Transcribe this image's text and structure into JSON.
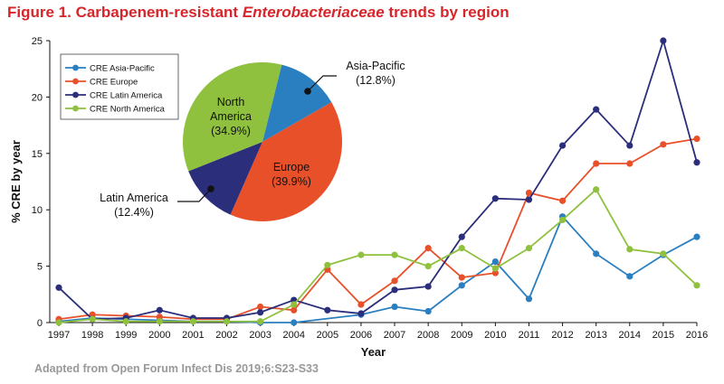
{
  "figure": {
    "title_prefix": "Figure 1. Carbapenem-resistant ",
    "title_italic": "Enterobacteriaceae",
    "title_suffix": " trends by region",
    "footer": "Adapted from Open Forum Infect Dis 2019;6:S23-S33"
  },
  "chart_data": [
    {
      "type": "line",
      "xlabel": "Year",
      "ylabel": "% CRE by year",
      "x": [
        "1997",
        "1998",
        "1999",
        "2000",
        "2001",
        "2002",
        "2003",
        "2004",
        "2005",
        "2006",
        "2007",
        "2008",
        "2009",
        "2010",
        "2011",
        "2012",
        "2013",
        "2014",
        "2015",
        "2016"
      ],
      "ylim": [
        0,
        25
      ],
      "yticks": [
        0,
        5,
        10,
        15,
        20,
        25
      ],
      "grid": false,
      "legend": "top-left",
      "series": [
        {
          "name": "CRE Asia-Pacific",
          "color": "#2a7fc1",
          "x": [
            "1997",
            "1998",
            "1999",
            "2000",
            "2001",
            "2002",
            "2003",
            "2004",
            "2006",
            "2007",
            "2008",
            "2009",
            "2010",
            "2011",
            "2012",
            "2013",
            "2014",
            "2015",
            "2016"
          ],
          "values": [
            0.1,
            0.4,
            0.3,
            0.2,
            0.1,
            0.1,
            0.0,
            0.0,
            0.7,
            1.4,
            1.0,
            3.3,
            5.4,
            2.1,
            9.4,
            6.1,
            4.1,
            6.0,
            7.6
          ]
        },
        {
          "name": "CRE Europe",
          "color": "#e8502a",
          "x": [
            "1997",
            "1998",
            "1999",
            "2000",
            "2001",
            "2002",
            "2003",
            "2004",
            "2005",
            "2006",
            "2007",
            "2008",
            "2009",
            "2010",
            "2011",
            "2012",
            "2013",
            "2014",
            "2015",
            "2016"
          ],
          "values": [
            0.3,
            0.7,
            0.6,
            0.5,
            0.3,
            0.3,
            1.4,
            1.1,
            4.7,
            1.6,
            3.7,
            6.6,
            4.0,
            4.4,
            11.5,
            10.8,
            14.1,
            14.1,
            15.8,
            16.3
          ]
        },
        {
          "name": "CRE Latin America",
          "color": "#2b2e7a",
          "x": [
            "1997",
            "1998",
            "1999",
            "2000",
            "2001",
            "2002",
            "2003",
            "2004",
            "2005",
            "2006",
            "2007",
            "2008",
            "2009",
            "2010",
            "2011",
            "2012",
            "2013",
            "2014",
            "2015",
            "2016"
          ],
          "values": [
            3.1,
            0.3,
            0.4,
            1.1,
            0.4,
            0.4,
            0.9,
            2.0,
            1.1,
            0.8,
            2.9,
            3.2,
            7.6,
            11.0,
            10.9,
            15.7,
            18.9,
            15.7,
            25.0,
            14.2
          ]
        },
        {
          "name": "CRE North America",
          "color": "#8fc13e",
          "x": [
            "1997",
            "1998",
            "1999",
            "2000",
            "2001",
            "2002",
            "2003",
            "2004",
            "2005",
            "2006",
            "2007",
            "2008",
            "2009",
            "2010",
            "2011",
            "2012",
            "2013",
            "2014",
            "2015",
            "2016"
          ],
          "values": [
            0.0,
            0.3,
            0.1,
            0.1,
            0.1,
            0.1,
            0.1,
            1.6,
            5.1,
            6.0,
            6.0,
            5.0,
            6.6,
            4.8,
            6.6,
            9.1,
            11.8,
            6.5,
            6.1,
            3.3
          ]
        }
      ]
    },
    {
      "type": "pie",
      "slices": [
        {
          "name": "Asia-Pacific",
          "label": "Asia-Pacific",
          "pct_label": "(12.8%)",
          "value": 12.8,
          "color": "#2a7fc1"
        },
        {
          "name": "Europe",
          "label": "Europe",
          "pct_label": "(39.9%)",
          "value": 39.9,
          "color": "#e8502a"
        },
        {
          "name": "Latin America",
          "label": "Latin America",
          "pct_label": "(12.4%)",
          "value": 12.4,
          "color": "#2b2e7a"
        },
        {
          "name": "North America",
          "label": "North",
          "label2": "America",
          "pct_label": "(34.9%)",
          "value": 34.9,
          "color": "#8fc13e"
        }
      ]
    }
  ]
}
